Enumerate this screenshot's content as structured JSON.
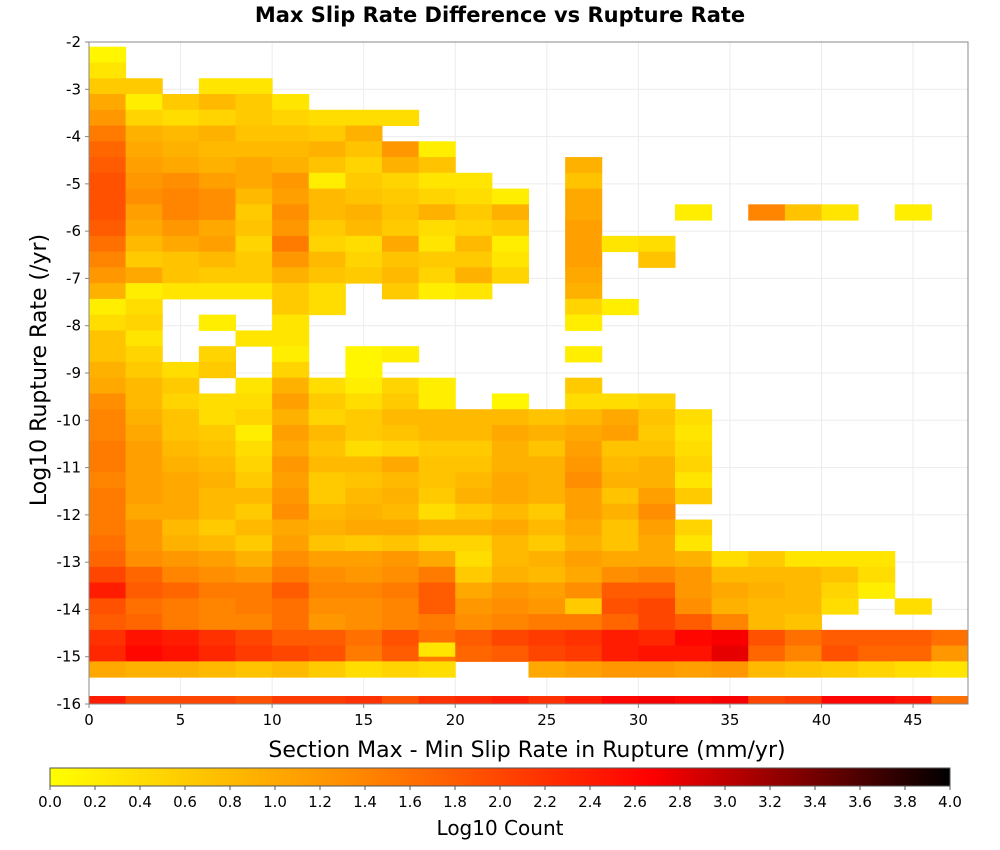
{
  "chart_data": {
    "type": "heatmap",
    "title": "Max Slip Rate Difference vs Rupture Rate",
    "xlabel": "Section Max - Min Slip Rate in Rupture (mm/yr)",
    "ylabel": "Log10 Rupture Rate (/yr)",
    "xlim": [
      0,
      48
    ],
    "ylim": [
      -16,
      -2
    ],
    "x_ticks": [
      "0",
      "5",
      "10",
      "15",
      "20",
      "25",
      "30",
      "35",
      "40",
      "45"
    ],
    "y_ticks": [
      "-2",
      "-3",
      "-4",
      "-5",
      "-6",
      "-7",
      "-8",
      "-9",
      "-10",
      "-11",
      "-12",
      "-13",
      "-14",
      "-15",
      "-16"
    ],
    "grid": true,
    "colorbar": {
      "label": "Log10 Count",
      "range": [
        0.0,
        4.0
      ],
      "ticks": [
        "0.0",
        "0.2",
        "0.4",
        "0.6",
        "0.8",
        "1.0",
        "1.2",
        "1.4",
        "1.6",
        "1.8",
        "2.0",
        "2.2",
        "2.4",
        "2.6",
        "2.8",
        "3.0",
        "3.2",
        "3.4",
        "3.6",
        "3.8",
        "4.0"
      ],
      "colors": [
        "#ffff00",
        "#ff8c00",
        "#ff0000",
        "#000000"
      ],
      "placement": "bottom"
    },
    "bins": {
      "x_start": 0,
      "x_width": 2,
      "y_top": -2.1,
      "y_height": 0.3333,
      "note_rows": "rows listed top to bottom, columns left to right; null = no data"
    },
    "rows": [
      [
        0.1,
        null,
        null,
        null,
        null,
        null,
        null,
        null,
        null,
        null,
        null,
        null,
        null,
        null,
        null,
        null,
        null,
        null,
        null,
        null,
        null,
        null,
        null,
        null
      ],
      [
        0.3,
        null,
        null,
        null,
        null,
        null,
        null,
        null,
        null,
        null,
        null,
        null,
        null,
        null,
        null,
        null,
        null,
        null,
        null,
        null,
        null,
        null,
        null,
        null
      ],
      [
        0.6,
        0.6,
        null,
        0.3,
        0.3,
        null,
        null,
        null,
        null,
        null,
        null,
        null,
        null,
        null,
        null,
        null,
        null,
        null,
        null,
        null,
        null,
        null,
        null,
        null
      ],
      [
        1.0,
        0.2,
        0.6,
        0.8,
        0.6,
        0.3,
        null,
        null,
        null,
        null,
        null,
        null,
        null,
        null,
        null,
        null,
        null,
        null,
        null,
        null,
        null,
        null,
        null,
        null
      ],
      [
        1.2,
        0.5,
        0.4,
        0.5,
        0.6,
        0.5,
        0.4,
        0.4,
        0.4,
        null,
        null,
        null,
        null,
        null,
        null,
        null,
        null,
        null,
        null,
        null,
        null,
        null,
        null,
        null
      ],
      [
        1.5,
        0.9,
        0.8,
        0.9,
        0.7,
        0.7,
        0.6,
        0.9,
        null,
        null,
        null,
        null,
        null,
        null,
        null,
        null,
        null,
        null,
        null,
        null,
        null,
        null,
        null,
        null
      ],
      [
        1.7,
        1.0,
        0.9,
        0.8,
        0.8,
        0.8,
        0.9,
        0.7,
        1.2,
        0.2,
        null,
        null,
        null,
        null,
        null,
        null,
        null,
        null,
        null,
        null,
        null,
        null,
        null,
        null
      ],
      [
        1.8,
        1.1,
        1.0,
        0.9,
        1.0,
        0.9,
        0.7,
        0.5,
        0.9,
        0.7,
        null,
        null,
        null,
        0.9,
        null,
        null,
        null,
        null,
        null,
        null,
        null,
        null,
        null,
        null
      ],
      [
        1.9,
        1.2,
        1.3,
        1.1,
        1.0,
        1.2,
        0.2,
        0.6,
        0.5,
        0.3,
        0.3,
        null,
        null,
        0.7,
        null,
        null,
        null,
        null,
        null,
        null,
        null,
        null,
        null,
        null
      ],
      [
        1.9,
        1.3,
        1.4,
        1.3,
        0.8,
        1.1,
        0.8,
        0.7,
        0.6,
        0.5,
        0.4,
        0.2,
        null,
        1.0,
        null,
        null,
        null,
        null,
        null,
        null,
        null,
        null,
        null,
        null
      ],
      [
        1.9,
        1.1,
        1.4,
        1.3,
        0.6,
        1.3,
        0.8,
        0.9,
        0.7,
        0.9,
        0.6,
        0.9,
        null,
        1.0,
        null,
        null,
        0.2,
        null,
        1.4,
        0.7,
        0.3,
        null,
        0.2,
        null
      ],
      [
        1.8,
        1.0,
        1.2,
        1.0,
        0.7,
        1.2,
        0.6,
        0.8,
        0.6,
        0.4,
        0.5,
        0.6,
        null,
        1.1,
        null,
        null,
        null,
        null,
        null,
        null,
        null,
        null,
        null,
        null
      ],
      [
        1.6,
        0.8,
        1.0,
        1.1,
        0.5,
        1.5,
        0.5,
        0.4,
        1.0,
        0.3,
        0.8,
        0.2,
        null,
        1.1,
        0.3,
        0.4,
        null,
        null,
        null,
        null,
        null,
        null,
        null,
        null
      ],
      [
        1.4,
        0.6,
        0.7,
        0.8,
        0.6,
        1.2,
        0.8,
        0.5,
        0.7,
        0.6,
        0.6,
        0.3,
        null,
        1.1,
        null,
        0.7,
        null,
        null,
        null,
        null,
        null,
        null,
        null,
        null
      ],
      [
        1.2,
        1.0,
        0.7,
        0.6,
        0.6,
        0.9,
        0.7,
        0.6,
        0.8,
        0.5,
        0.9,
        0.5,
        null,
        1.0,
        null,
        null,
        null,
        null,
        null,
        null,
        null,
        null,
        null,
        null
      ],
      [
        0.9,
        0.2,
        0.3,
        0.3,
        0.3,
        0.6,
        0.4,
        null,
        0.6,
        0.2,
        0.3,
        null,
        null,
        0.9,
        null,
        null,
        null,
        null,
        null,
        null,
        null,
        null,
        null,
        null
      ],
      [
        0.2,
        0.4,
        null,
        null,
        null,
        0.6,
        0.4,
        null,
        null,
        null,
        null,
        null,
        null,
        0.5,
        0.2,
        null,
        null,
        null,
        null,
        null,
        null,
        null,
        null,
        null
      ],
      [
        0.4,
        0.5,
        null,
        0.2,
        null,
        0.3,
        null,
        null,
        null,
        null,
        null,
        null,
        null,
        0.2,
        null,
        null,
        null,
        null,
        null,
        null,
        null,
        null,
        null,
        null
      ],
      [
        0.7,
        0.3,
        null,
        null,
        0.3,
        0.3,
        null,
        null,
        null,
        null,
        null,
        null,
        null,
        null,
        null,
        null,
        null,
        null,
        null,
        null,
        null,
        null,
        null,
        null
      ],
      [
        0.7,
        0.5,
        null,
        0.5,
        null,
        0.2,
        null,
        0.1,
        0.2,
        null,
        null,
        null,
        null,
        0.2,
        null,
        null,
        null,
        null,
        null,
        null,
        null,
        null,
        null,
        null
      ],
      [
        0.9,
        0.6,
        0.4,
        0.6,
        null,
        0.5,
        null,
        0.1,
        null,
        null,
        null,
        null,
        null,
        null,
        null,
        null,
        null,
        null,
        null,
        null,
        null,
        null,
        null,
        null
      ],
      [
        1.0,
        0.8,
        0.6,
        null,
        0.3,
        0.9,
        0.4,
        0.2,
        0.5,
        0.2,
        null,
        null,
        null,
        0.6,
        null,
        null,
        null,
        null,
        null,
        null,
        null,
        null,
        null,
        null
      ],
      [
        1.3,
        0.8,
        0.5,
        0.4,
        0.4,
        1.1,
        0.6,
        0.4,
        0.6,
        0.2,
        null,
        0.1,
        null,
        0.4,
        0.4,
        0.5,
        null,
        null,
        null,
        null,
        null,
        null,
        null,
        null
      ],
      [
        1.4,
        0.9,
        0.7,
        0.4,
        0.5,
        0.9,
        0.5,
        0.6,
        0.8,
        0.8,
        0.8,
        0.8,
        0.7,
        0.8,
        1.0,
        0.7,
        0.4,
        null,
        null,
        null,
        null,
        null,
        null,
        null
      ],
      [
        1.4,
        1.0,
        0.7,
        0.6,
        0.2,
        1.1,
        0.8,
        0.6,
        0.7,
        0.8,
        0.8,
        1.0,
        0.9,
        1.0,
        1.1,
        0.6,
        0.3,
        null,
        null,
        null,
        null,
        null,
        null,
        null
      ],
      [
        1.5,
        1.1,
        0.8,
        0.7,
        0.4,
        1.0,
        0.7,
        0.4,
        0.5,
        0.6,
        0.6,
        0.9,
        0.7,
        1.1,
        0.7,
        0.7,
        0.4,
        null,
        null,
        null,
        null,
        null,
        null,
        null
      ],
      [
        1.5,
        1.1,
        0.9,
        0.8,
        0.5,
        1.2,
        0.8,
        0.8,
        1.0,
        0.7,
        0.7,
        0.9,
        0.9,
        1.2,
        0.8,
        0.9,
        0.5,
        null,
        null,
        null,
        null,
        null,
        null,
        null
      ],
      [
        1.4,
        1.1,
        1.0,
        0.9,
        0.6,
        1.1,
        0.6,
        0.7,
        0.8,
        0.7,
        0.8,
        1.0,
        0.9,
        1.3,
        0.9,
        0.9,
        0.3,
        null,
        null,
        null,
        null,
        null,
        null,
        null
      ],
      [
        1.5,
        1.1,
        1.0,
        0.8,
        0.8,
        1.2,
        0.6,
        0.8,
        0.9,
        0.6,
        0.9,
        1.0,
        0.9,
        1.1,
        0.7,
        1.1,
        0.6,
        null,
        null,
        null,
        null,
        null,
        null,
        null
      ],
      [
        1.5,
        1.0,
        1.0,
        0.8,
        0.6,
        1.3,
        0.8,
        0.9,
        0.8,
        0.4,
        0.6,
        0.8,
        0.6,
        1.1,
        0.9,
        1.3,
        null,
        null,
        null,
        null,
        null,
        null,
        null,
        null
      ],
      [
        1.5,
        1.2,
        0.8,
        0.6,
        0.8,
        1.0,
        0.9,
        1.0,
        1.0,
        0.9,
        0.9,
        1.0,
        0.8,
        1.0,
        0.7,
        1.1,
        0.5,
        null,
        null,
        null,
        null,
        null,
        null,
        null
      ],
      [
        1.6,
        1.2,
        0.9,
        0.8,
        0.6,
        1.1,
        0.7,
        0.6,
        0.7,
        0.5,
        0.5,
        0.8,
        0.6,
        0.9,
        0.7,
        1.0,
        0.3,
        null,
        null,
        null,
        null,
        null,
        null,
        null
      ],
      [
        1.7,
        1.3,
        1.2,
        1.1,
        0.9,
        1.3,
        1.1,
        1.1,
        1.2,
        1.0,
        0.4,
        0.8,
        0.9,
        1.1,
        1.0,
        1.0,
        0.9,
        0.4,
        0.6,
        0.3,
        0.3,
        0.3,
        null,
        null
      ],
      [
        2.0,
        1.7,
        1.4,
        1.3,
        1.2,
        1.5,
        1.3,
        1.2,
        1.3,
        1.5,
        0.6,
        0.9,
        0.8,
        1.0,
        1.3,
        1.4,
        1.2,
        0.8,
        0.8,
        0.8,
        0.7,
        0.4,
        null,
        null
      ],
      [
        2.4,
        1.8,
        1.7,
        1.5,
        1.5,
        1.8,
        1.4,
        1.4,
        1.5,
        1.8,
        1.0,
        1.2,
        1.1,
        1.3,
        1.8,
        1.8,
        1.2,
        1.0,
        0.9,
        0.8,
        0.5,
        0.2,
        null,
        null
      ],
      [
        1.9,
        1.6,
        1.5,
        1.4,
        1.5,
        1.6,
        1.3,
        1.3,
        1.4,
        1.8,
        1.2,
        1.3,
        1.2,
        0.6,
        1.9,
        2.0,
        1.3,
        0.9,
        0.8,
        0.8,
        0.4,
        null,
        0.4,
        null
      ],
      [
        1.8,
        1.7,
        1.5,
        1.4,
        1.4,
        1.6,
        1.2,
        1.3,
        1.4,
        1.5,
        1.3,
        1.4,
        1.5,
        1.5,
        1.7,
        2.0,
        1.8,
        1.4,
        0.8,
        0.7,
        null,
        null,
        null,
        null
      ],
      [
        2.2,
        2.5,
        2.4,
        2.2,
        2.0,
        1.8,
        1.8,
        1.6,
        1.9,
        1.6,
        1.8,
        2.0,
        2.1,
        2.2,
        2.4,
        2.3,
        2.6,
        2.7,
        1.9,
        1.6,
        1.8,
        1.8,
        1.8,
        1.6
      ],
      [
        2.3,
        2.6,
        2.5,
        2.3,
        2.1,
        2.0,
        1.9,
        1.5,
        1.8,
        1.5,
        1.7,
        1.8,
        2.0,
        2.1,
        2.4,
        2.5,
        2.5,
        2.8,
        1.7,
        1.4,
        1.9,
        1.7,
        1.7,
        1.2
      ],
      [
        1.0,
        0.9,
        0.9,
        0.8,
        0.7,
        0.8,
        0.6,
        0.4,
        0.5,
        0.4,
        null,
        null,
        1.0,
        1.1,
        1.2,
        1.2,
        1.1,
        1.2,
        0.8,
        0.7,
        0.6,
        0.5,
        0.4,
        0.3
      ]
    ],
    "extra_cells": [
      {
        "x_bin": 9,
        "y_top": -14.7,
        "y_bottom": -15.0,
        "value": 0.3
      }
    ],
    "bottom_row": {
      "y": -16.0,
      "values": [
        2.4,
        2.0,
        2.0,
        2.0,
        1.9,
        2.1,
        2.1,
        2.2,
        1.9,
        2.2,
        2.3,
        2.4,
        2.2,
        2.4,
        2.6,
        2.7,
        2.6,
        2.7,
        2.0,
        2.1,
        2.6,
        2.6,
        2.5,
        1.6
      ]
    }
  }
}
